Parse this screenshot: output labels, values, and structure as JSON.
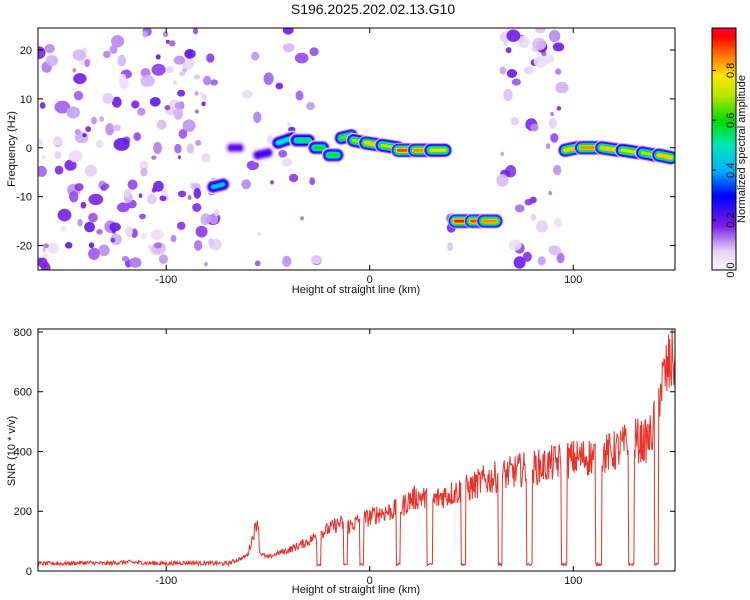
{
  "title": "S196.2025.202.02.13.G10",
  "chart_data": [
    {
      "type": "heatmap",
      "xlabel": "Height of straight line (km)",
      "ylabel": "Frequency (Hz)",
      "xlim": [
        -163,
        150
      ],
      "ylim": [
        -25,
        24.5
      ],
      "x_ticks": [
        -100,
        0,
        100
      ],
      "y_ticks": [
        -20,
        -10,
        0,
        10,
        20
      ],
      "colorbar": {
        "label": "Normalized spectral amplitude",
        "range": [
          0,
          0.97
        ],
        "ticks": [
          0,
          0.2,
          0.4,
          0.6,
          0.8
        ],
        "tick_labels": [
          "0.0",
          "0.2",
          "0.4",
          "0.6",
          "0.8"
        ]
      },
      "noise_bands": [
        {
          "x": [
            -163,
            -75
          ],
          "intensity": 0.22
        },
        {
          "x": [
            -63,
            -25
          ],
          "intensity": 0.08
        },
        {
          "x": [
            38,
            42
          ],
          "intensity": 0.12
        },
        {
          "x": [
            65,
            95
          ],
          "intensity": 0.2
        }
      ],
      "tracks": [
        {
          "x": [
            -77,
            -72
          ],
          "freq": [
            -8,
            -7.5
          ],
          "peak": 0.45
        },
        {
          "x": [
            -68,
            -64
          ],
          "freq": [
            0,
            0
          ],
          "peak": 0.22
        },
        {
          "x": [
            -55,
            -50
          ],
          "freq": [
            -1.5,
            -1
          ],
          "peak": 0.25
        },
        {
          "x": [
            -45,
            -38
          ],
          "freq": [
            1,
            2
          ],
          "peak": 0.5
        },
        {
          "x": [
            -36,
            -30
          ],
          "freq": [
            1.5,
            1.5
          ],
          "peak": 0.55
        },
        {
          "x": [
            -27,
            -23
          ],
          "freq": [
            0,
            0
          ],
          "peak": 0.6
        },
        {
          "x": [
            -20,
            -16
          ],
          "freq": [
            -1.5,
            -1.5
          ],
          "peak": 0.6
        },
        {
          "x": [
            -14,
            -9
          ],
          "freq": [
            2,
            2.5
          ],
          "peak": 0.65
        },
        {
          "x": [
            -8,
            -2
          ],
          "freq": [
            1.5,
            1
          ],
          "peak": 0.7
        },
        {
          "x": [
            -2,
            6
          ],
          "freq": [
            1,
            0.5
          ],
          "peak": 0.8
        },
        {
          "x": [
            6,
            14
          ],
          "freq": [
            0.5,
            0
          ],
          "peak": 0.72
        },
        {
          "x": [
            14,
            20
          ],
          "freq": [
            -0.5,
            -0.5
          ],
          "peak": 0.9
        },
        {
          "x": [
            22,
            28
          ],
          "freq": [
            -0.5,
            -0.5
          ],
          "peak": 0.85
        },
        {
          "x": [
            30,
            37
          ],
          "freq": [
            -0.5,
            -0.5
          ],
          "peak": 0.75
        },
        {
          "x": [
            42,
            48
          ],
          "freq": [
            -15,
            -15
          ],
          "peak": 0.92
        },
        {
          "x": [
            50,
            55
          ],
          "freq": [
            -15,
            -15
          ],
          "peak": 0.9
        },
        {
          "x": [
            56,
            62
          ],
          "freq": [
            -15,
            -15
          ],
          "peak": 0.85
        },
        {
          "x": [
            96,
            102
          ],
          "freq": [
            -0.5,
            0
          ],
          "peak": 0.8
        },
        {
          "x": [
            104,
            112
          ],
          "freq": [
            0,
            0
          ],
          "peak": 0.85
        },
        {
          "x": [
            114,
            122
          ],
          "freq": [
            0,
            -0.5
          ],
          "peak": 0.8
        },
        {
          "x": [
            124,
            132
          ],
          "freq": [
            -0.5,
            -1
          ],
          "peak": 0.75
        },
        {
          "x": [
            134,
            140
          ],
          "freq": [
            -1,
            -1.5
          ],
          "peak": 0.7
        },
        {
          "x": [
            142,
            148
          ],
          "freq": [
            -1.5,
            -2
          ],
          "peak": 0.8
        }
      ]
    },
    {
      "type": "line",
      "xlabel": "Height of straight line (km)",
      "ylabel": "SNR (10 * v/v)",
      "xlim": [
        -163,
        150
      ],
      "ylim": [
        0,
        810
      ],
      "x_ticks": [
        -100,
        0,
        100
      ],
      "y_ticks": [
        0,
        200,
        400,
        600,
        800
      ],
      "color": "#e8322b",
      "series": [
        {
          "x": [
            -163,
            -150,
            -140,
            -130,
            -120,
            -110,
            -100,
            -90,
            -80,
            -70,
            -62,
            -60,
            -56,
            -55,
            -54,
            -50,
            -45,
            -40,
            -35,
            -30,
            -25,
            -20,
            -15,
            -10,
            -5,
            0,
            5,
            10,
            15,
            20,
            25,
            30,
            35,
            40,
            45,
            50,
            55,
            60,
            65,
            70,
            75,
            80,
            85,
            90,
            95,
            100,
            105,
            110,
            115,
            120,
            125,
            130,
            135,
            138,
            140,
            142,
            145,
            148,
            150
          ],
          "y": [
            25,
            25,
            28,
            25,
            30,
            27,
            25,
            28,
            26,
            25,
            45,
            55,
            150,
            180,
            60,
            45,
            60,
            70,
            85,
            100,
            125,
            140,
            160,
            150,
            170,
            180,
            195,
            200,
            210,
            240,
            250,
            230,
            250,
            260,
            270,
            280,
            300,
            310,
            320,
            330,
            340,
            345,
            350,
            360,
            370,
            375,
            380,
            385,
            390,
            400,
            420,
            440,
            430,
            450,
            500,
            600,
            650,
            700,
            720
          ]
        }
      ],
      "dropouts": [
        {
          "x": [
            -26,
            -24
          ]
        },
        {
          "x": [
            -13,
            -11
          ]
        },
        {
          "x": [
            -5,
            -3
          ]
        },
        {
          "x": [
            13,
            15
          ]
        },
        {
          "x": [
            28,
            31
          ]
        },
        {
          "x": [
            45,
            47
          ]
        },
        {
          "x": [
            63,
            65
          ]
        },
        {
          "x": [
            77,
            80
          ]
        },
        {
          "x": [
            94,
            97
          ]
        },
        {
          "x": [
            111,
            114
          ]
        },
        {
          "x": [
            127,
            130
          ]
        },
        {
          "x": [
            140,
            142
          ]
        }
      ]
    }
  ]
}
